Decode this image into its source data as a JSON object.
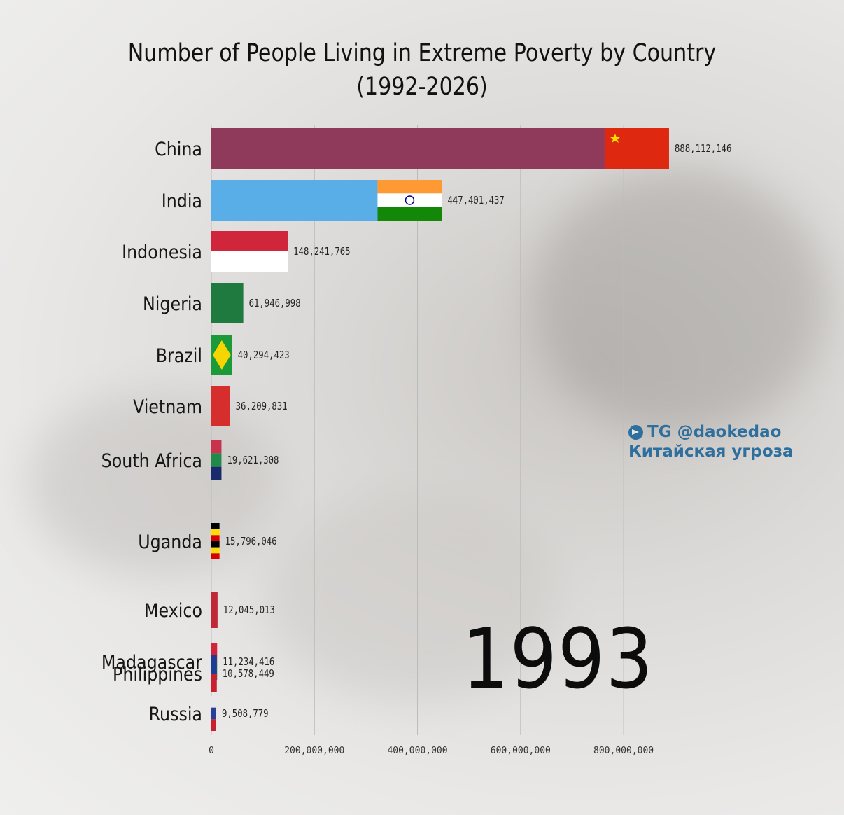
{
  "chart_data": {
    "type": "bar",
    "orientation": "horizontal",
    "title": [
      "Number of People Living in Extreme Poverty by Country",
      "(1992-2026)"
    ],
    "year": "1993",
    "xlim": [
      0,
      900000000
    ],
    "x_ticks": [
      {
        "value": 0,
        "label": "0"
      },
      {
        "value": 200000000,
        "label": "200,000,000"
      },
      {
        "value": 400000000,
        "label": "400,000,000"
      },
      {
        "value": 600000000,
        "label": "600,000,000"
      },
      {
        "value": 800000000,
        "label": "800,000,000"
      }
    ],
    "bars": [
      {
        "category": "China",
        "value": 888112146,
        "value_label": "888,112,146",
        "flag": "china"
      },
      {
        "category": "India",
        "value": 447401437,
        "value_label": "447,401,437",
        "flag": "india"
      },
      {
        "category": "Indonesia",
        "value": 148241765,
        "value_label": "148,241,765",
        "flag": "indonesia"
      },
      {
        "category": "Nigeria",
        "value": 61946998,
        "value_label": "61,946,998",
        "flag": "nigeria"
      },
      {
        "category": "Brazil",
        "value": 40294423,
        "value_label": "40,294,423",
        "flag": "brazil"
      },
      {
        "category": "Vietnam",
        "value": 36209831,
        "value_label": "36,209,831",
        "flag": "vietnam"
      },
      {
        "category": "South Africa",
        "value": 19621308,
        "value_label": "19,621,308",
        "flag": "south-africa"
      },
      {
        "category": "Uganda",
        "value": 15796046,
        "value_label": "15,796,046",
        "flag": "uganda"
      },
      {
        "category": "Mexico",
        "value": 12045013,
        "value_label": "12,045,013",
        "flag": "mexico"
      },
      {
        "category": "Madagascar",
        "value": 11234416,
        "value_label": "11,234,416",
        "flag": "madagascar"
      },
      {
        "category": "Philippines",
        "value": 10578449,
        "value_label": "10,578,449",
        "flag": "philippines"
      },
      {
        "category": "Russia",
        "value": 9508779,
        "value_label": "9,508,779",
        "flag": "russia"
      }
    ],
    "grid": true
  },
  "watermark": {
    "line1": "TG @daokedao",
    "line2": "Китайская угроза",
    "icon": "telegram-icon",
    "color": "#2f6f9e"
  },
  "colors": {
    "china_bar": "#8f3a5a",
    "china_flag": "#de2910",
    "india_bar": "#5aaee8",
    "flag_saffron": "#ff9933",
    "flag_green": "#138808",
    "indonesia_red": "#d0253a",
    "nigeria_green": "#1f7a3f",
    "brazil_green": "#1b9a3a",
    "brazil_yellow": "#f6d500",
    "vietnam_red": "#d62d2d"
  }
}
